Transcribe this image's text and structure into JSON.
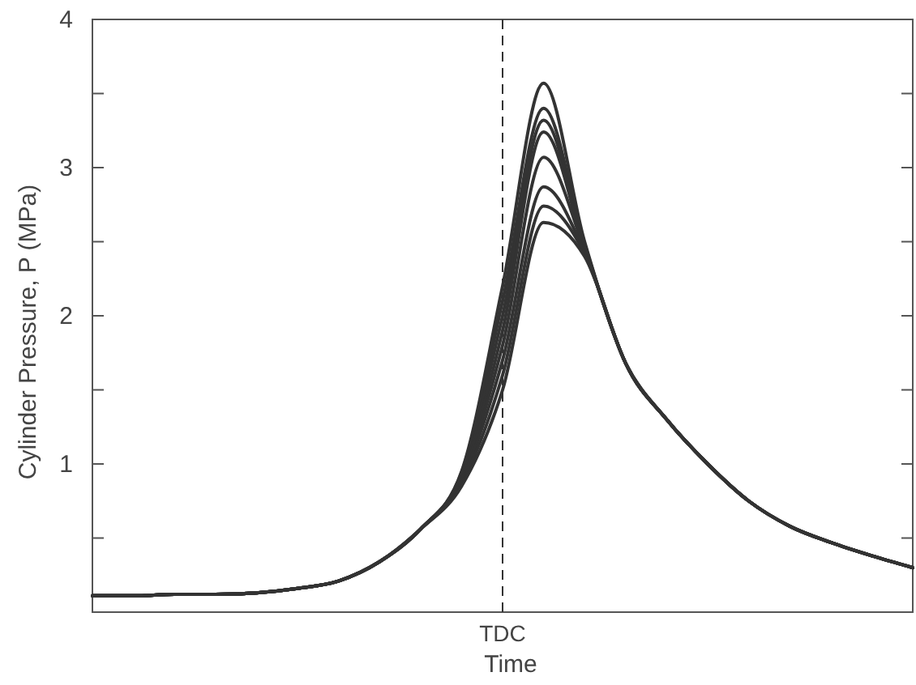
{
  "chart_data": {
    "type": "line",
    "xlabel": "Time",
    "ylabel": "Cylinder Pressure, P (MPa)",
    "categories": [
      null,
      null,
      null,
      null,
      null,
      null,
      null,
      null,
      null,
      null,
      "TDC",
      null,
      null,
      null,
      null,
      null,
      null,
      null,
      null,
      null,
      null
    ],
    "ylim": [
      0,
      4
    ],
    "yticks": [
      {
        "value": 0.5,
        "label": null
      },
      1,
      {
        "value": 1.5,
        "label": null
      },
      2,
      {
        "value": 2.5,
        "label": null
      },
      3,
      {
        "value": 3.5,
        "label": null
      },
      4
    ],
    "grid": false,
    "line_style": "solid",
    "marker": "none",
    "ref_lines": [
      {
        "axis": "x",
        "value": "TDC",
        "line_style": "dashed",
        "color": "#333333"
      }
    ],
    "series": [
      {
        "color": "#333333",
        "values": [
          0.11,
          0.11,
          0.12,
          0.12,
          0.13,
          0.16,
          0.21,
          0.34,
          0.56,
          0.95,
          2.2,
          3.57,
          2.5,
          1.68,
          1.3,
          1.0,
          0.75,
          0.58,
          0.47,
          0.38,
          0.3
        ]
      },
      {
        "color": "#333333",
        "values": [
          0.11,
          0.11,
          0.12,
          0.12,
          0.13,
          0.16,
          0.21,
          0.34,
          0.56,
          0.94,
          2.1,
          3.4,
          2.48,
          1.68,
          1.3,
          1.0,
          0.75,
          0.58,
          0.47,
          0.38,
          0.3
        ]
      },
      {
        "color": "#333333",
        "values": [
          0.11,
          0.11,
          0.12,
          0.12,
          0.13,
          0.16,
          0.21,
          0.34,
          0.56,
          0.93,
          2.0,
          3.32,
          2.47,
          1.68,
          1.3,
          1.0,
          0.75,
          0.58,
          0.47,
          0.38,
          0.3
        ]
      },
      {
        "color": "#333333",
        "values": [
          0.11,
          0.11,
          0.12,
          0.12,
          0.13,
          0.16,
          0.21,
          0.34,
          0.56,
          0.92,
          1.9,
          3.24,
          2.46,
          1.68,
          1.3,
          1.0,
          0.75,
          0.58,
          0.47,
          0.38,
          0.3
        ]
      },
      {
        "color": "#333333",
        "values": [
          0.11,
          0.11,
          0.12,
          0.12,
          0.13,
          0.16,
          0.21,
          0.34,
          0.56,
          0.91,
          1.8,
          3.07,
          2.45,
          1.68,
          1.3,
          1.0,
          0.75,
          0.58,
          0.47,
          0.38,
          0.3
        ]
      },
      {
        "color": "#333333",
        "values": [
          0.11,
          0.11,
          0.12,
          0.12,
          0.13,
          0.16,
          0.21,
          0.34,
          0.56,
          0.89,
          1.7,
          2.87,
          2.43,
          1.68,
          1.3,
          1.0,
          0.75,
          0.58,
          0.47,
          0.38,
          0.3
        ]
      },
      {
        "color": "#333333",
        "values": [
          0.11,
          0.11,
          0.12,
          0.12,
          0.13,
          0.16,
          0.21,
          0.34,
          0.56,
          0.87,
          1.6,
          2.74,
          2.42,
          1.68,
          1.3,
          1.0,
          0.75,
          0.58,
          0.47,
          0.38,
          0.3
        ]
      },
      {
        "color": "#333333",
        "values": [
          0.11,
          0.11,
          0.12,
          0.12,
          0.13,
          0.16,
          0.21,
          0.34,
          0.56,
          0.85,
          1.5,
          2.63,
          2.4,
          1.68,
          1.3,
          1.0,
          0.75,
          0.58,
          0.47,
          0.38,
          0.3
        ]
      }
    ]
  }
}
